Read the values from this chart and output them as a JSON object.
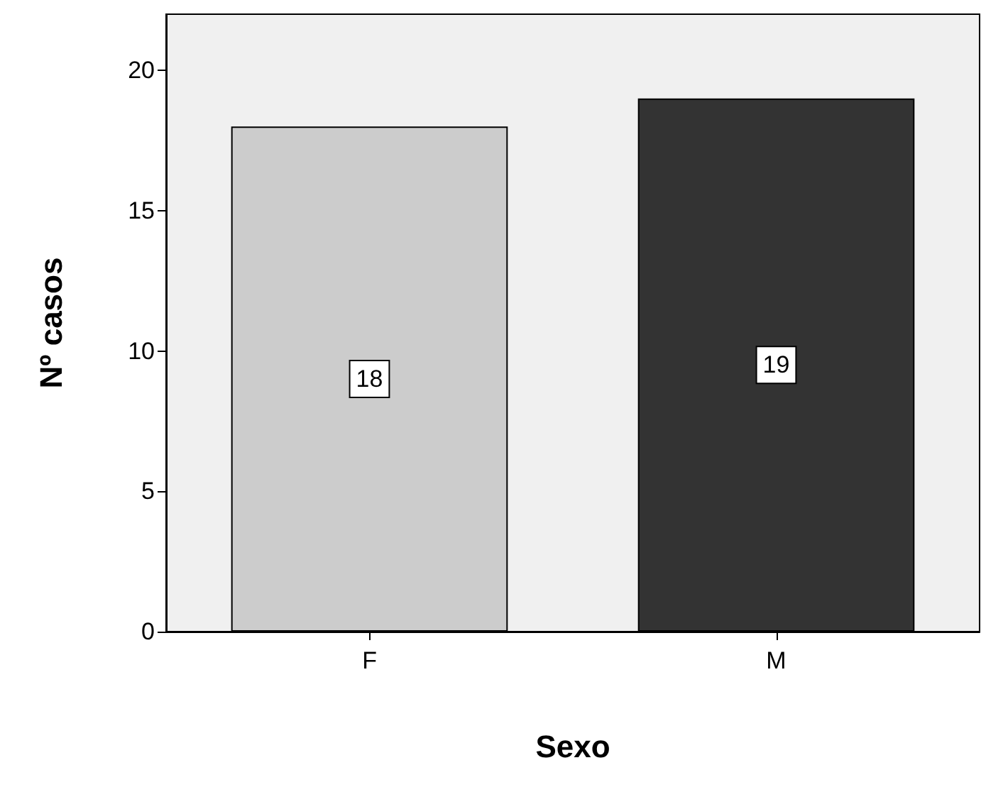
{
  "chart_data": {
    "type": "bar",
    "xlabel": "Sexo",
    "ylabel": "Nº casos",
    "categories": [
      "F",
      "M"
    ],
    "values": [
      18,
      19
    ],
    "colors": [
      "#cccccc",
      "#333333"
    ],
    "ylim": [
      0,
      22
    ],
    "yticks": [
      0,
      5,
      10,
      15,
      20
    ],
    "grid": false,
    "data_labels": true
  }
}
